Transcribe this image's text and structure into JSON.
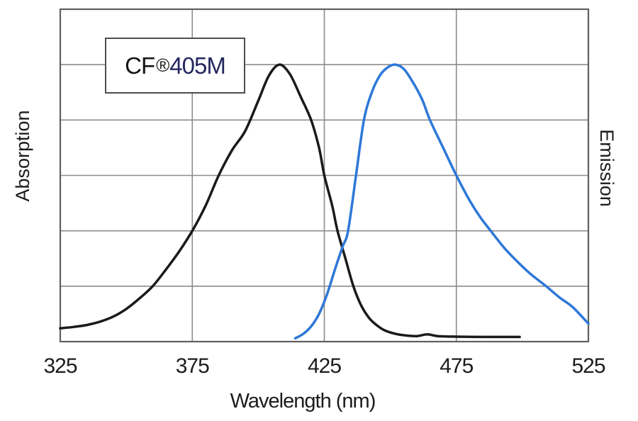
{
  "title_box": {
    "prefix": "CF",
    "registered_mark": "®",
    "suffix": "405M"
  },
  "y_axis_left": {
    "label": "Absorption"
  },
  "y_axis_right": {
    "label": "Emission"
  },
  "x_axis": {
    "label": "Wavelength (nm)",
    "ticks": [
      "325",
      "375",
      "425",
      "475",
      "525"
    ]
  },
  "colors": {
    "absorption_curve": "#1a1a1a",
    "emission_curve": "#2d78d7",
    "grid_line": "#8c8c8c",
    "plot_border": "#5f5f5f",
    "text": "#1c1c1c",
    "dye_number_text": "#23285e",
    "background": "#ffffff"
  },
  "chart_data": {
    "type": "line",
    "title": "CF®405M",
    "xlabel": "Wavelength (nm)",
    "ylabel_left": "Absorption",
    "ylabel_right": "Emission",
    "xlim": [
      325,
      525
    ],
    "ylim": [
      0,
      1.2
    ],
    "x_ticks": [
      325,
      375,
      425,
      475,
      525
    ],
    "grid": {
      "on": true,
      "x_step_nm": 50,
      "y_step": 0.2
    },
    "legend": "none",
    "series": [
      {
        "name": "Absorption",
        "color": "#1a1a1a",
        "peak_nm": 408,
        "points": [
          [
            325,
            0.048
          ],
          [
            330,
            0.053
          ],
          [
            335,
            0.06
          ],
          [
            340,
            0.072
          ],
          [
            345,
            0.09
          ],
          [
            350,
            0.118
          ],
          [
            355,
            0.156
          ],
          [
            360,
            0.2
          ],
          [
            365,
            0.26
          ],
          [
            370,
            0.325
          ],
          [
            375,
            0.4
          ],
          [
            380,
            0.49
          ],
          [
            385,
            0.6
          ],
          [
            390,
            0.69
          ],
          [
            395,
            0.76
          ],
          [
            400,
            0.87
          ],
          [
            404,
            0.96
          ],
          [
            408,
            1.0
          ],
          [
            412,
            0.965
          ],
          [
            416,
            0.885
          ],
          [
            420,
            0.8
          ],
          [
            423,
            0.7
          ],
          [
            425,
            0.6
          ],
          [
            428,
            0.49
          ],
          [
            430,
            0.4
          ],
          [
            433,
            0.3
          ],
          [
            436,
            0.2
          ],
          [
            439,
            0.13
          ],
          [
            442,
            0.085
          ],
          [
            445,
            0.058
          ],
          [
            448,
            0.04
          ],
          [
            452,
            0.028
          ],
          [
            456,
            0.022
          ],
          [
            460,
            0.02
          ],
          [
            464,
            0.026
          ],
          [
            468,
            0.02
          ],
          [
            475,
            0.018
          ],
          [
            485,
            0.017
          ],
          [
            492,
            0.017
          ],
          [
            499,
            0.017
          ]
        ]
      },
      {
        "name": "Emission",
        "color": "#2d78d7",
        "peak_nm": 452,
        "points": [
          [
            414,
            0.012
          ],
          [
            417,
            0.028
          ],
          [
            420,
            0.055
          ],
          [
            423,
            0.1
          ],
          [
            426,
            0.17
          ],
          [
            429,
            0.26
          ],
          [
            432,
            0.345
          ],
          [
            434,
            0.4
          ],
          [
            437,
            0.6
          ],
          [
            440,
            0.8
          ],
          [
            443,
            0.9
          ],
          [
            446,
            0.96
          ],
          [
            449,
            0.99
          ],
          [
            452,
            1.0
          ],
          [
            455,
            0.985
          ],
          [
            458,
            0.945
          ],
          [
            462,
            0.875
          ],
          [
            465,
            0.8
          ],
          [
            470,
            0.7
          ],
          [
            475,
            0.6
          ],
          [
            480,
            0.51
          ],
          [
            484,
            0.45
          ],
          [
            488,
            0.4
          ],
          [
            493,
            0.34
          ],
          [
            498,
            0.29
          ],
          [
            503,
            0.245
          ],
          [
            509,
            0.2
          ],
          [
            514,
            0.16
          ],
          [
            519,
            0.125
          ],
          [
            525,
            0.065
          ]
        ]
      }
    ]
  }
}
